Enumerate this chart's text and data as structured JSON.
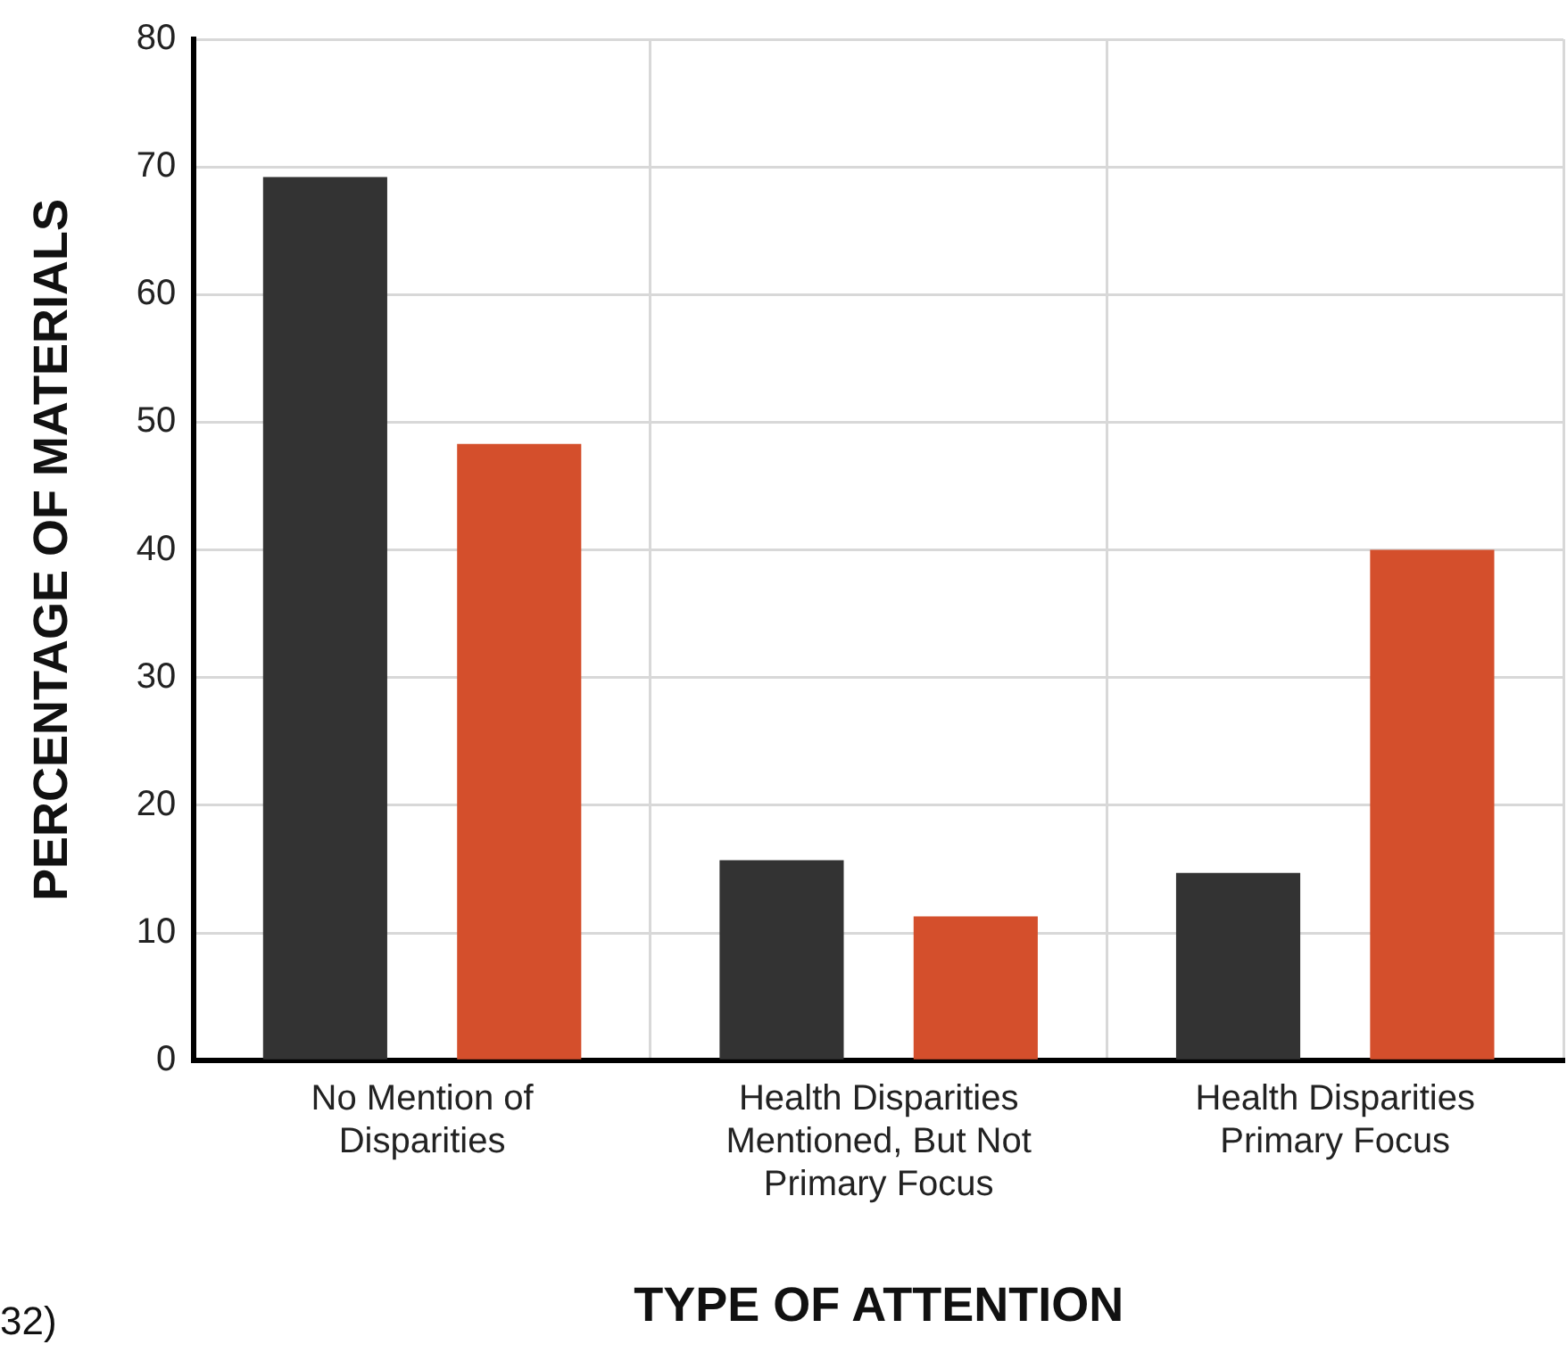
{
  "chart_data": {
    "type": "bar",
    "xlabel": "TYPE OF ATTENTION",
    "ylabel": "PERCENTAGE OF MATERIALS",
    "categories": [
      "No Mention of Disparities",
      "Health Disparities Mentioned, But Not Primary Focus",
      "Health Disparities Primary Focus"
    ],
    "series": [
      {
        "color": "#333333",
        "values": [
          69.2,
          15.7,
          14.7
        ]
      },
      {
        "color": "#d44f2c",
        "values": [
          48.3,
          11.3,
          40
        ]
      }
    ],
    "ylim": [
      0,
      80
    ],
    "yticks": [
      0,
      10,
      20,
      30,
      40,
      50,
      60,
      70,
      80
    ],
    "grid": true,
    "legend": false,
    "annotations": [
      "32)"
    ]
  }
}
